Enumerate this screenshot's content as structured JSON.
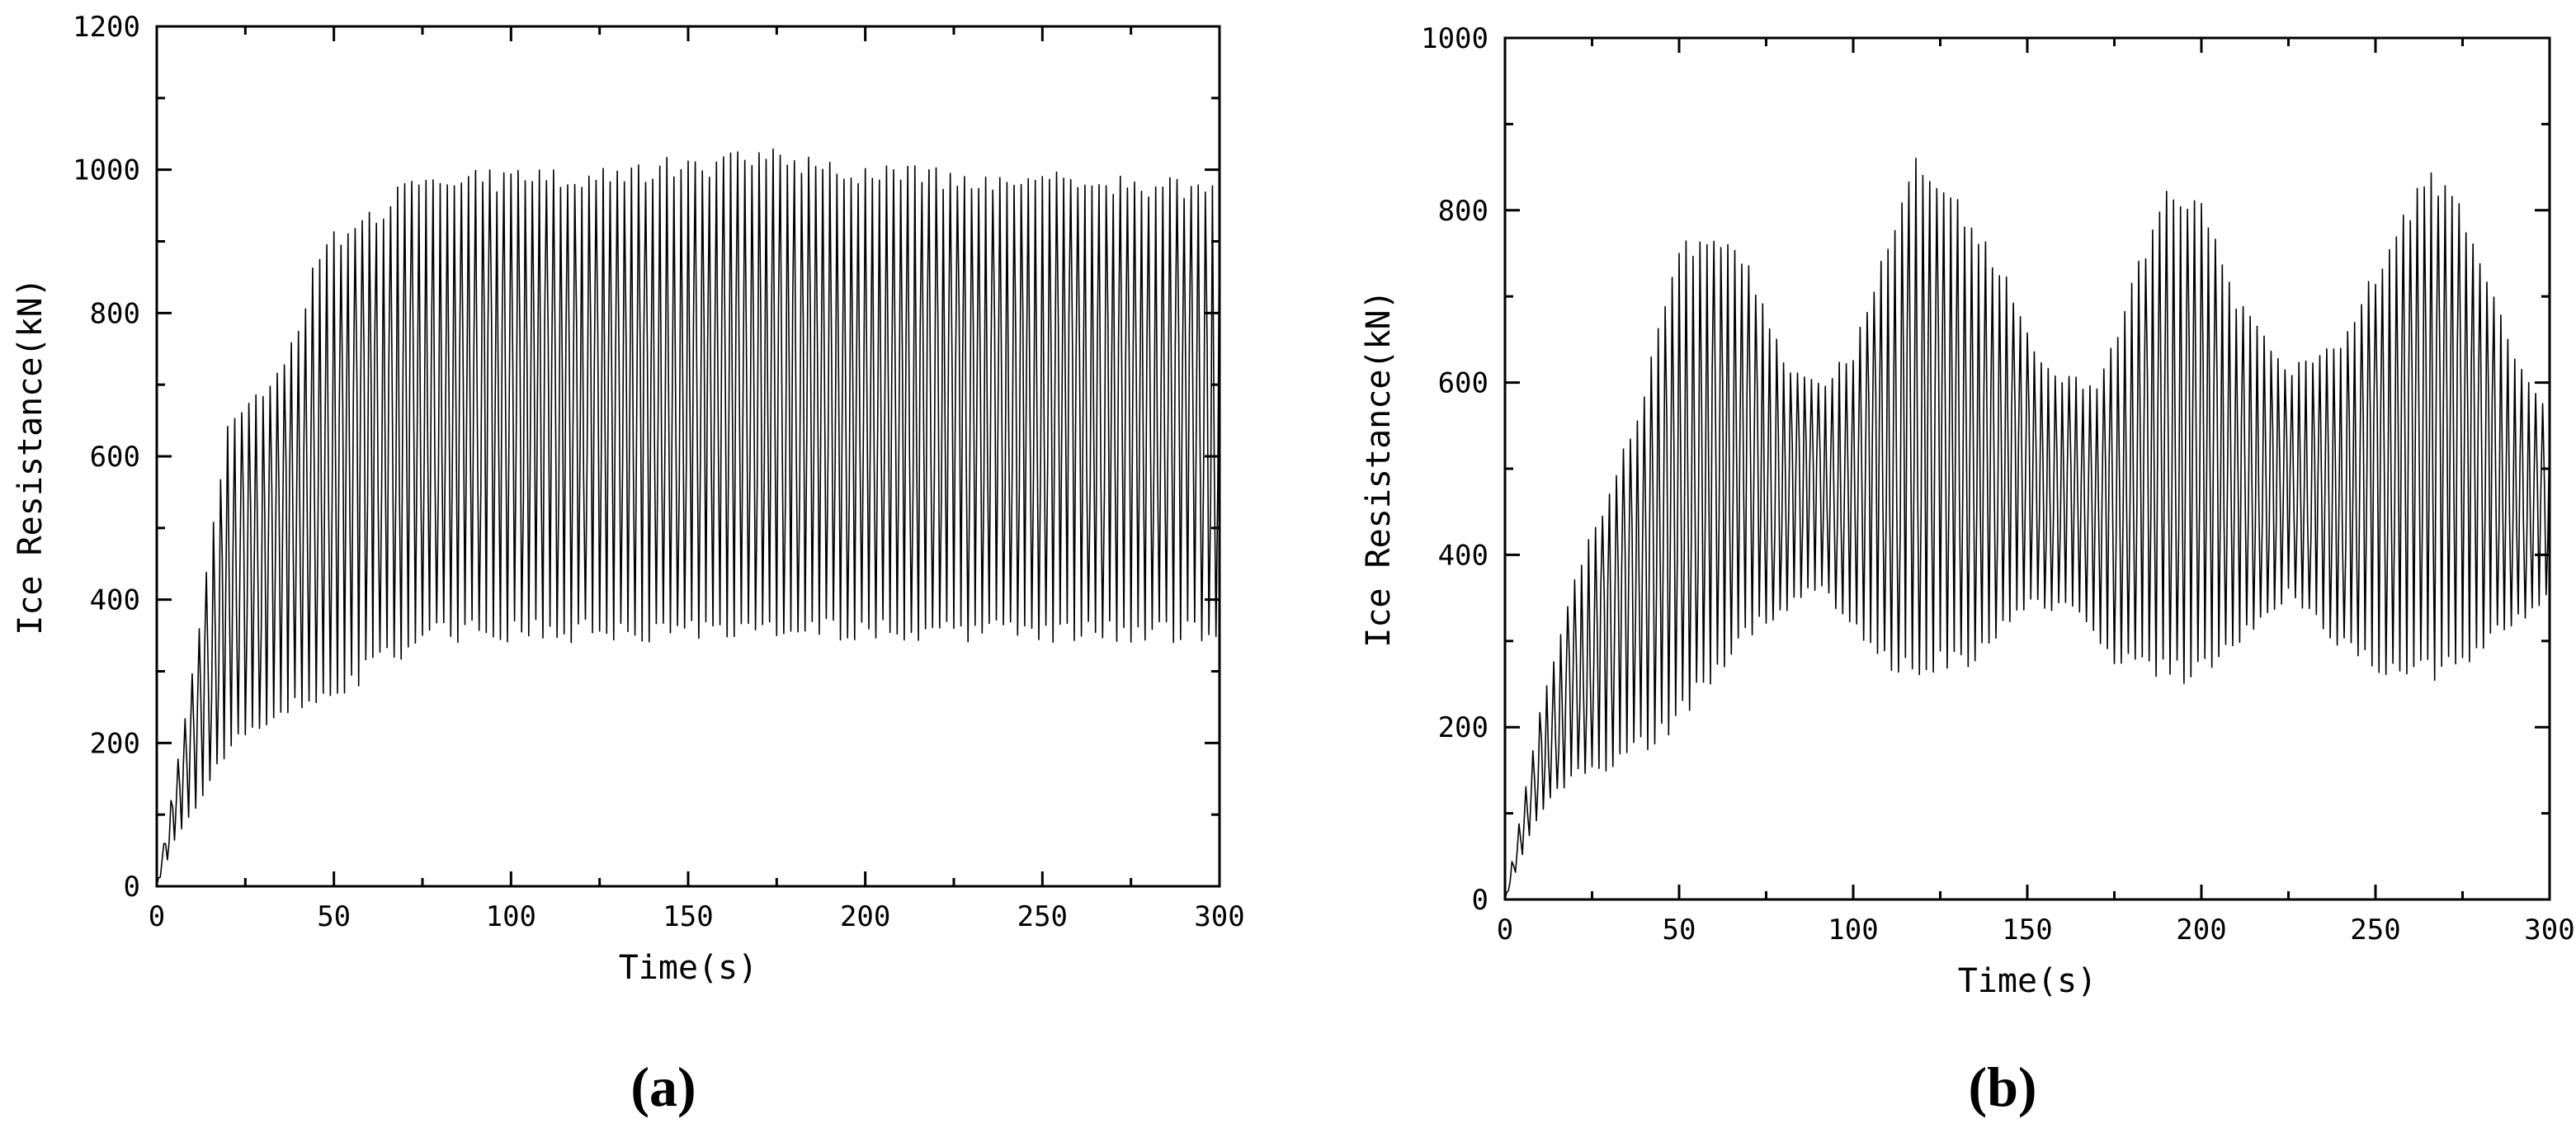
{
  "chart_data": [
    {
      "type": "line",
      "panel_label": "(a)",
      "xlabel": "Time(s)",
      "ylabel": "Ice Resistance(kN)",
      "xlim": [
        0,
        300
      ],
      "ylim": [
        0,
        1200
      ],
      "xticks": [
        "0",
        "50",
        "100",
        "150",
        "200",
        "250",
        "300"
      ],
      "yticks": [
        "0",
        "200",
        "400",
        "600",
        "800",
        "1000",
        "1200"
      ],
      "grid": false,
      "legend": "none",
      "line_color": "#000000",
      "series": [
        {
          "sampled_every_s": 0.5,
          "x_start": 0,
          "x_end": 300,
          "upper_envelope": [
            [
              0,
              0
            ],
            [
              10,
              300
            ],
            [
              20,
              650
            ],
            [
              30,
              700
            ],
            [
              40,
              780
            ],
            [
              45,
              900
            ],
            [
              60,
              950
            ],
            [
              75,
              1000
            ],
            [
              100,
              1000
            ],
            [
              150,
              1020
            ],
            [
              175,
              1030
            ],
            [
              200,
              1010
            ],
            [
              250,
              1000
            ],
            [
              300,
              990
            ]
          ],
          "lower_envelope": [
            [
              0,
              0
            ],
            [
              5,
              60
            ],
            [
              10,
              100
            ],
            [
              20,
              180
            ],
            [
              30,
              220
            ],
            [
              40,
              240
            ],
            [
              50,
              250
            ],
            [
              60,
              290
            ],
            [
              80,
              340
            ],
            [
              150,
              340
            ],
            [
              300,
              340
            ]
          ],
          "cycles_per_s": 0.5
        }
      ]
    },
    {
      "type": "line",
      "panel_label": "(b)",
      "xlabel": "Time(s)",
      "ylabel": "Ice Resistance(kN)",
      "xlim": [
        0,
        300
      ],
      "ylim": [
        0,
        1000
      ],
      "xticks": [
        "0",
        "50",
        "100",
        "150",
        "200",
        "250",
        "300"
      ],
      "yticks": [
        "0",
        "200",
        "400",
        "600",
        "800",
        "1000"
      ],
      "grid": false,
      "legend": "none",
      "line_color": "#000000",
      "series": [
        {
          "sampled_every_s": 0.5,
          "x_start": 0,
          "x_end": 300,
          "upper_envelope": [
            [
              0,
              0
            ],
            [
              10,
              220
            ],
            [
              20,
              380
            ],
            [
              30,
              480
            ],
            [
              40,
              600
            ],
            [
              50,
              760
            ],
            [
              60,
              790
            ],
            [
              70,
              740
            ],
            [
              80,
              630
            ],
            [
              90,
              600
            ],
            [
              100,
              640
            ],
            [
              110,
              780
            ],
            [
              118,
              870
            ],
            [
              130,
              820
            ],
            [
              145,
              720
            ],
            [
              155,
              620
            ],
            [
              170,
              600
            ],
            [
              180,
              720
            ],
            [
              190,
              840
            ],
            [
              200,
              820
            ],
            [
              210,
              700
            ],
            [
              225,
              620
            ],
            [
              240,
              650
            ],
            [
              255,
              780
            ],
            [
              265,
              850
            ],
            [
              275,
              810
            ],
            [
              290,
              640
            ],
            [
              300,
              560
            ]
          ],
          "lower_envelope": [
            [
              0,
              0
            ],
            [
              10,
              100
            ],
            [
              20,
              140
            ],
            [
              30,
              150
            ],
            [
              40,
              170
            ],
            [
              50,
              200
            ],
            [
              60,
              250
            ],
            [
              70,
              300
            ],
            [
              80,
              330
            ],
            [
              90,
              360
            ],
            [
              100,
              310
            ],
            [
              110,
              260
            ],
            [
              120,
              255
            ],
            [
              135,
              270
            ],
            [
              150,
              340
            ],
            [
              165,
              330
            ],
            [
              175,
              270
            ],
            [
              190,
              250
            ],
            [
              200,
              250
            ],
            [
              210,
              290
            ],
            [
              225,
              350
            ],
            [
              240,
              290
            ],
            [
              255,
              250
            ],
            [
              270,
              255
            ],
            [
              285,
              300
            ],
            [
              300,
              350
            ]
          ],
          "cycles_per_s": 0.5
        }
      ]
    }
  ]
}
